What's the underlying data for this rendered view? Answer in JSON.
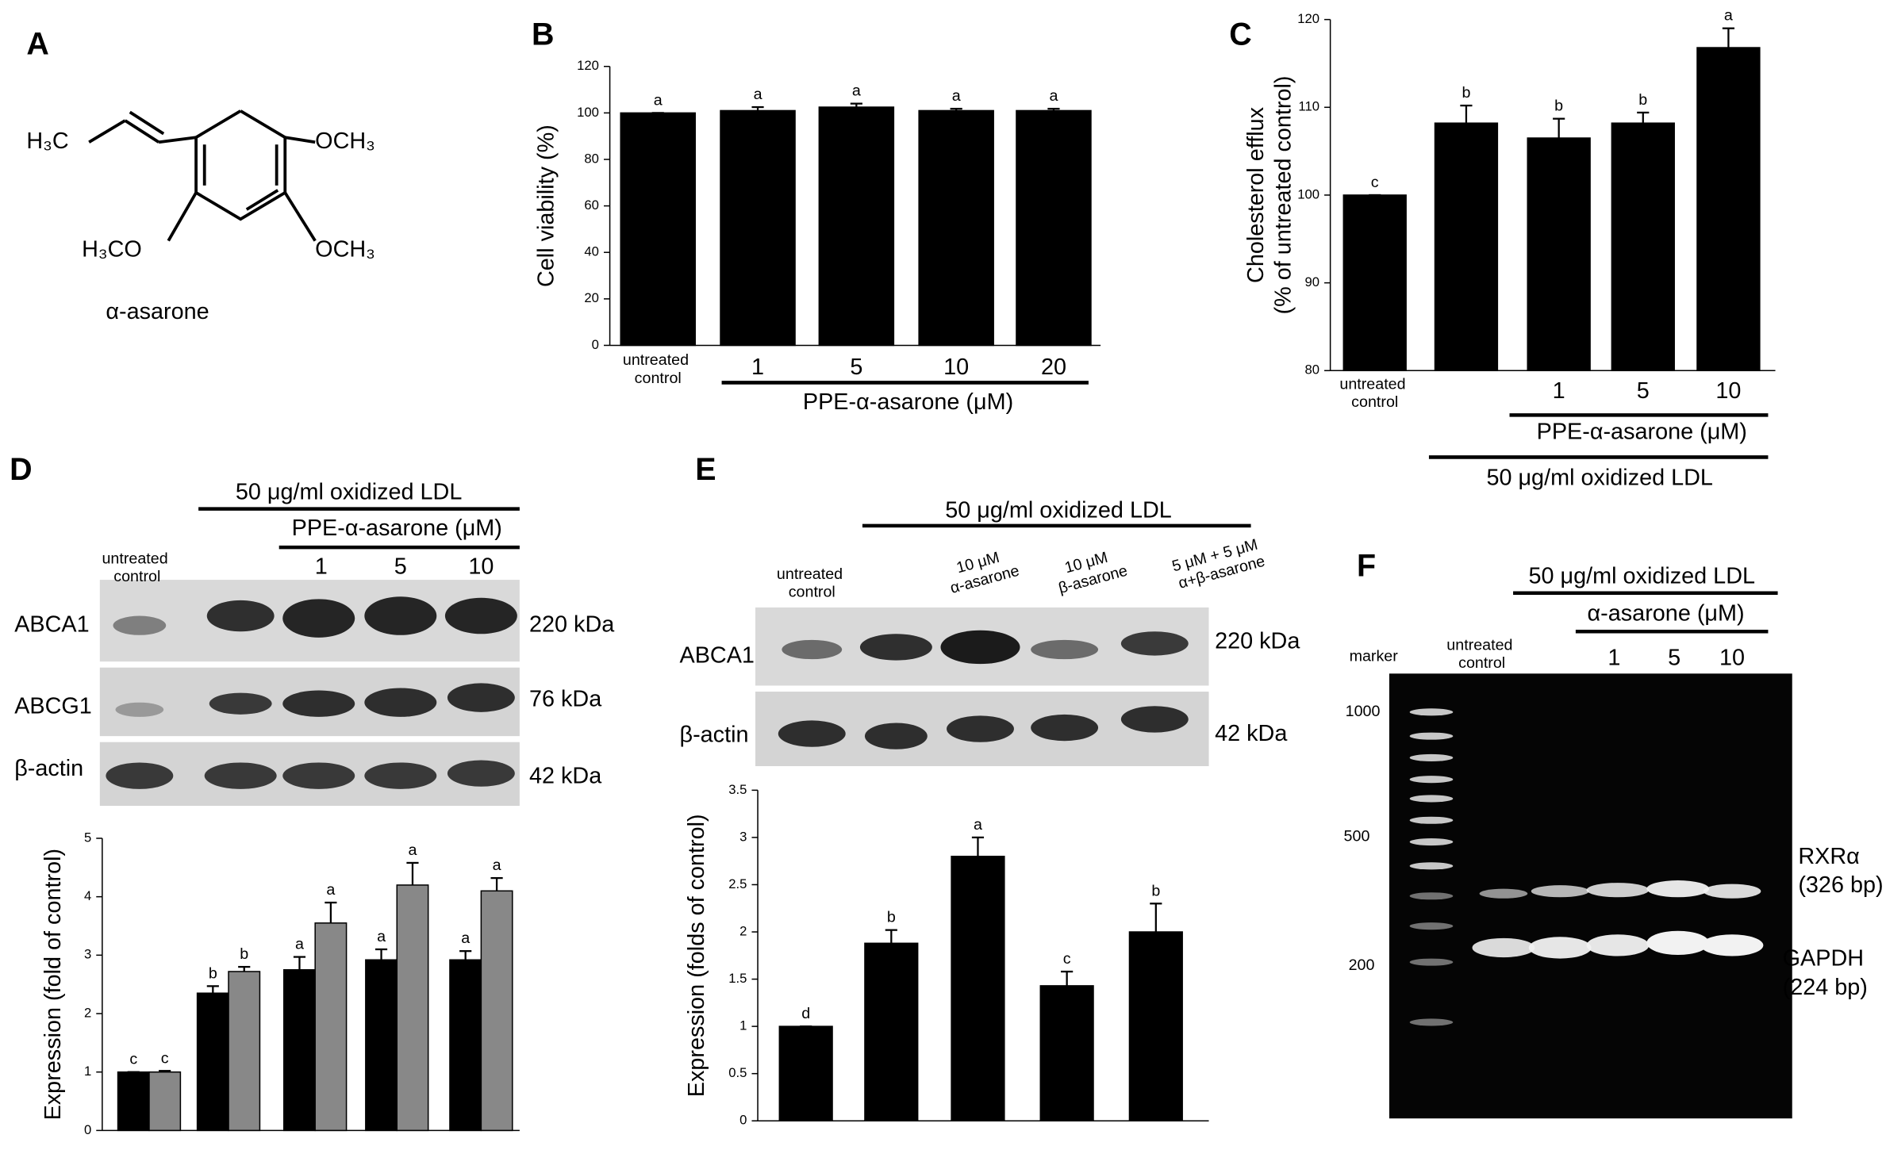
{
  "structure": {
    "panel": "A",
    "groups": [
      "H₃C",
      "OCH₃",
      "H₃CO",
      "OCH₃"
    ],
    "name": "α-asarone"
  },
  "chart_data": [
    {
      "panel": "B",
      "type": "bar",
      "y_label": "Cell viability (%)",
      "categories": [
        "untreated control",
        "1",
        "5",
        "10",
        "20"
      ],
      "series": [
        {
          "color": "#000000",
          "values": [
            100,
            101,
            102.5,
            101,
            101
          ],
          "errors": [
            0,
            1.5,
            1.5,
            0.8,
            0.8
          ],
          "annotations": [
            "a",
            "a",
            "a",
            "a",
            "a"
          ]
        }
      ],
      "ylim": [
        0,
        120
      ],
      "yticks": [
        0,
        20,
        40,
        60,
        80,
        100,
        120
      ],
      "group_labels": [
        "PPE-α-asarone (μM)"
      ]
    },
    {
      "panel": "C",
      "type": "bar",
      "y_label": [
        "Cholesterol efflux",
        "(% of untreated control)"
      ],
      "categories": [
        "untreated control",
        null,
        "1",
        "5",
        "10"
      ],
      "series": [
        {
          "color": "#000000",
          "values": [
            100,
            108.2,
            106.5,
            108.2,
            116.8
          ],
          "errors": [
            0,
            2,
            2.2,
            1.2,
            2.2
          ],
          "annotations": [
            "c",
            "b",
            "b",
            "b",
            "a"
          ]
        }
      ],
      "ylim": [
        80,
        120
      ],
      "yticks": [
        80,
        90,
        100,
        110,
        120
      ],
      "group_labels": [
        "PPE-α-asarone (μM)",
        "50 μg/ml oxidized LDL"
      ]
    },
    {
      "panel": "D",
      "type": "bar",
      "y_label": "Expression (fold of control)",
      "series": [
        {
          "color": "#000000",
          "values": [
            1,
            2.35,
            2.75,
            2.92,
            2.92
          ],
          "errors": [
            0,
            0.12,
            0.22,
            0.18,
            0.15
          ],
          "annotations": [
            "c",
            "b",
            "a",
            "a",
            "a"
          ]
        },
        {
          "color": "#888888",
          "values": [
            1,
            2.72,
            3.55,
            4.2,
            4.1
          ],
          "errors": [
            0.02,
            0.08,
            0.35,
            0.38,
            0.22
          ],
          "annotations": [
            "c",
            "b",
            "a",
            "a",
            "a"
          ]
        }
      ],
      "ylim": [
        0,
        5
      ],
      "yticks": [
        0,
        1,
        2,
        3,
        4,
        5
      ]
    },
    {
      "panel": "E",
      "type": "bar",
      "y_label": "Expression (folds of control)",
      "series": [
        {
          "color": "#000000",
          "values": [
            1,
            1.88,
            2.8,
            1.43,
            2.0
          ],
          "errors": [
            0,
            0.14,
            0.2,
            0.15,
            0.3
          ],
          "annotations": [
            "d",
            "b",
            "a",
            "c",
            "b"
          ]
        }
      ],
      "ylim": [
        0,
        3.5
      ],
      "yticks": [
        0,
        0.5,
        1,
        1.5,
        2,
        2.5,
        3,
        3.5
      ]
    }
  ],
  "blots": {
    "D": {
      "treatment": "50 μg/ml oxidized LDL",
      "drug": "PPE-α-asarone (μM)",
      "lanes": [
        "untreated control",
        "1",
        "5",
        "10"
      ],
      "rows": [
        "ABCA1",
        "ABCG1",
        "β-actin"
      ],
      "sizes": [
        "220 kDa",
        "76 kDa",
        "42 kDa"
      ]
    },
    "E": {
      "treatment": "50 μg/ml  oxidized  LDL",
      "lanes": [
        "untreated control",
        "10 μM α-asarone",
        "10 μM β-asarone",
        "5 μM + 5 μM α+β-asarone"
      ],
      "rows": [
        "ABCA1",
        "β-actin"
      ],
      "sizes": [
        "220 kDa",
        "42 kDa"
      ]
    }
  },
  "gel": {
    "panel": "F",
    "treatment": "50 μg/ml oxidized LDL",
    "drug": "α-asarone (μM)",
    "marker": "marker",
    "lanes": [
      "untreated control",
      "1",
      "5",
      "10"
    ],
    "ladder": [
      "1000",
      "500",
      "200"
    ],
    "bands": [
      "RXRα",
      "(326 bp)",
      "GAPDH",
      "(224 bp)"
    ]
  }
}
